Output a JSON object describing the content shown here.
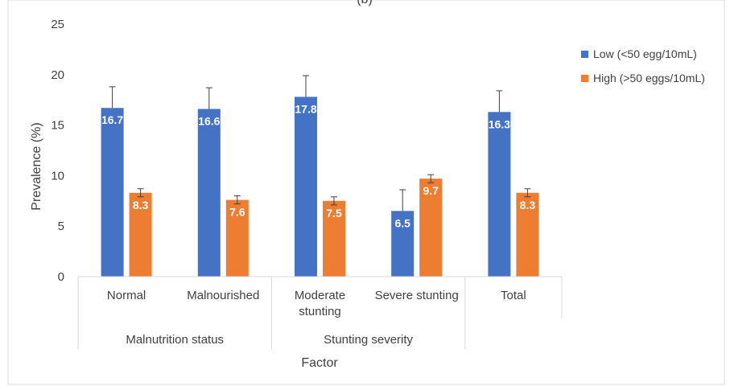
{
  "chart_data": {
    "type": "bar",
    "title": "(b)",
    "xlabel": "Factor",
    "ylabel": "Prevalence (%)",
    "ylim": [
      0,
      25
    ],
    "yticks": [
      0,
      5,
      10,
      15,
      20,
      25
    ],
    "grid": false,
    "legend_position": "right",
    "categories": [
      "Normal",
      "Malnourished",
      "Moderate stunting",
      "Severe stunting",
      "Total"
    ],
    "groups": [
      {
        "label": "Malnutrition status",
        "categories": [
          "Normal",
          "Malnourished"
        ]
      },
      {
        "label": "Stunting severity",
        "categories": [
          "Moderate stunting",
          "Severe stunting"
        ]
      }
    ],
    "series": [
      {
        "name": "Low (<50 egg/10mL)",
        "color": "#4472c4",
        "values": [
          16.7,
          16.6,
          17.8,
          6.5,
          16.3
        ],
        "error_upper": [
          18.8,
          18.7,
          19.9,
          8.6,
          18.4
        ],
        "error_lower": [
          16.7,
          16.6,
          17.8,
          6.5,
          16.3
        ]
      },
      {
        "name": "High (>50 eggs/10mL)",
        "color": "#ed7d31",
        "values": [
          8.3,
          7.6,
          7.5,
          9.7,
          8.3
        ],
        "error_upper": [
          8.7,
          8.0,
          7.9,
          10.1,
          8.7
        ],
        "error_lower": [
          7.9,
          7.2,
          7.1,
          9.3,
          7.9
        ]
      }
    ],
    "data_labels": [
      [
        "16.7",
        "16.6",
        "17.8",
        "6.5",
        "16.3"
      ],
      [
        "8.3",
        "7.6",
        "7.5",
        "9.7",
        "8.3"
      ]
    ]
  }
}
